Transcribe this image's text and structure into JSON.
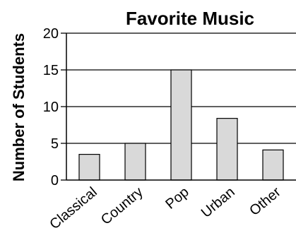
{
  "chart_data": {
    "type": "bar",
    "title": "Favorite Music",
    "xlabel": "",
    "ylabel": "Number of Students",
    "categories": [
      "Classical",
      "Country",
      "Pop",
      "Urban",
      "Other"
    ],
    "values": [
      3.5,
      5,
      15,
      8.4,
      4.1
    ],
    "yticks": [
      "0",
      "5",
      "10",
      "15",
      "20"
    ],
    "ylim": [
      0,
      20
    ],
    "grid": "horizontal",
    "colors": {
      "bar_fill": "#d9d9d9",
      "bar_stroke": "#000000",
      "grid": "#000000",
      "axis": "#000000"
    }
  }
}
